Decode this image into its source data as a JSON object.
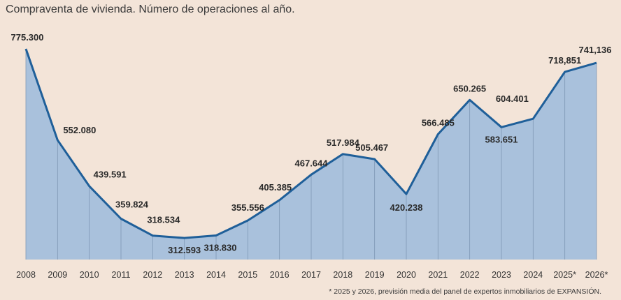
{
  "chart_data": {
    "type": "area",
    "title": "Compraventa de vivienda. Número de operaciones al año.",
    "xlabel": "",
    "ylabel": "",
    "categories": [
      "2008",
      "2009",
      "2010",
      "2011",
      "2012",
      "2013",
      "2014",
      "2015",
      "2016",
      "2017",
      "2018",
      "2019",
      "2020",
      "2021",
      "2022",
      "2023",
      "2024",
      "2025*",
      "2026*"
    ],
    "values": [
      775300,
      552080,
      439591,
      359824,
      318534,
      312593,
      318830,
      355556,
      405385,
      467644,
      517984,
      505467,
      420238,
      566485,
      650265,
      583651,
      604401,
      718851,
      741136
    ],
    "data_labels": [
      "775.300",
      "552.080",
      "439.591",
      "359.824",
      "318.534",
      "312.593",
      "318.830",
      "355.556",
      "405.385",
      "467.644",
      "517.984",
      "505.467",
      "420.238",
      "566.485",
      "650.265",
      "583.651",
      "604.401",
      "718,851",
      "741,136"
    ],
    "ylim": [
      260000,
      775300
    ],
    "grid": false,
    "note": "* 2025 y 2026, previsión media del panel de expertos inmobiliarios de EXPANSIÓN.",
    "colors": {
      "line": "#1f5f99",
      "fill": "#a9c1dc",
      "background": "#f3e4d8",
      "dropline": "#7e98b5"
    }
  }
}
